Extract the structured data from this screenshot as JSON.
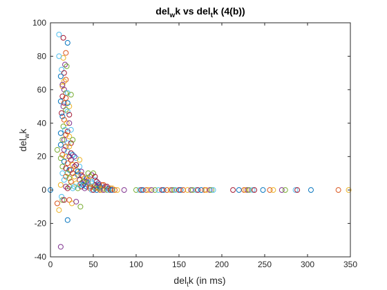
{
  "chart_data": {
    "type": "scatter",
    "title": {
      "a": "del",
      "a_sub": "w",
      "b": "k vs del",
      "b_sub": "t",
      "c": "k (4(b))"
    },
    "xlabel": {
      "a": "del",
      "a_sub": "t",
      "b": "k (in ms)"
    },
    "ylabel": {
      "a": "del",
      "a_sub": "w",
      "b": "k"
    },
    "xlim": [
      0,
      350
    ],
    "ylim": [
      -40,
      100
    ],
    "xticks": [
      "0",
      "50",
      "100",
      "150",
      "200",
      "250",
      "300",
      "350"
    ],
    "yticks": [
      "-40",
      "-20",
      "0",
      "20",
      "40",
      "60",
      "80",
      "100"
    ],
    "grid": false,
    "legend": "none",
    "palette": [
      "#0072BD",
      "#D95319",
      "#EDB120",
      "#7E2F8E",
      "#77AC30",
      "#4DBEEE",
      "#A2142F"
    ],
    "marker": "open-circle",
    "points": [
      [
        0,
        0
      ],
      [
        8,
        -8
      ],
      [
        10,
        -12
      ],
      [
        12,
        -34
      ],
      [
        14,
        -6
      ],
      [
        13,
        -4
      ],
      [
        16,
        -6
      ],
      [
        20,
        -18
      ],
      [
        22,
        -6
      ],
      [
        25,
        -8
      ],
      [
        30,
        -7
      ],
      [
        35,
        -10
      ],
      [
        10,
        93
      ],
      [
        15,
        91
      ],
      [
        20,
        88
      ],
      [
        18,
        82
      ],
      [
        15,
        79
      ],
      [
        17,
        75
      ],
      [
        19,
        74
      ],
      [
        13,
        72
      ],
      [
        16,
        70
      ],
      [
        12,
        68
      ],
      [
        18,
        66
      ],
      [
        14,
        62
      ],
      [
        16,
        60
      ],
      [
        18,
        58
      ],
      [
        20,
        58
      ],
      [
        14,
        56
      ],
      [
        12,
        53
      ],
      [
        16,
        52
      ],
      [
        22,
        50
      ],
      [
        15,
        50
      ],
      [
        18,
        48
      ],
      [
        20,
        47
      ],
      [
        13,
        46
      ],
      [
        14,
        44
      ],
      [
        16,
        42
      ],
      [
        19,
        40
      ],
      [
        22,
        40
      ],
      [
        15,
        38
      ],
      [
        17,
        36
      ],
      [
        20,
        35
      ],
      [
        12,
        34
      ],
      [
        18,
        33
      ],
      [
        22,
        32
      ],
      [
        16,
        30
      ],
      [
        14,
        30
      ],
      [
        20,
        28
      ],
      [
        24,
        28
      ],
      [
        12,
        27
      ],
      [
        18,
        26
      ],
      [
        22,
        26
      ],
      [
        16,
        24
      ],
      [
        8,
        24
      ],
      [
        20,
        23
      ],
      [
        24,
        22
      ],
      [
        26,
        21
      ],
      [
        14,
        21
      ],
      [
        18,
        20
      ],
      [
        22,
        20
      ],
      [
        12,
        19
      ],
      [
        30,
        19
      ],
      [
        24,
        18
      ],
      [
        16,
        17
      ],
      [
        20,
        16
      ],
      [
        26,
        15
      ],
      [
        28,
        14
      ],
      [
        14,
        14
      ],
      [
        34,
        14
      ],
      [
        18,
        13
      ],
      [
        22,
        12
      ],
      [
        24,
        12
      ],
      [
        30,
        12
      ],
      [
        36,
        11
      ],
      [
        20,
        10
      ],
      [
        14,
        10
      ],
      [
        26,
        10
      ],
      [
        32,
        9
      ],
      [
        18,
        8
      ],
      [
        28,
        8
      ],
      [
        38,
        8
      ],
      [
        22,
        7
      ],
      [
        16,
        6
      ],
      [
        34,
        6
      ],
      [
        42,
        7
      ],
      [
        44,
        6
      ],
      [
        46,
        8
      ],
      [
        48,
        9
      ],
      [
        50,
        10
      ],
      [
        52,
        6
      ],
      [
        54,
        5
      ],
      [
        40,
        5
      ],
      [
        24,
        5
      ],
      [
        30,
        4
      ],
      [
        36,
        4
      ],
      [
        44,
        4
      ],
      [
        48,
        4
      ],
      [
        52,
        3
      ],
      [
        56,
        3
      ],
      [
        60,
        3
      ],
      [
        12,
        3
      ],
      [
        18,
        2
      ],
      [
        22,
        2
      ],
      [
        28,
        2
      ],
      [
        36,
        2
      ],
      [
        42,
        2
      ],
      [
        46,
        2
      ],
      [
        50,
        2
      ],
      [
        54,
        2
      ],
      [
        58,
        1
      ],
      [
        62,
        1
      ],
      [
        66,
        2
      ],
      [
        68,
        1
      ],
      [
        70,
        1
      ],
      [
        72,
        1
      ],
      [
        40,
        1
      ],
      [
        32,
        1
      ],
      [
        26,
        1
      ],
      [
        20,
        1
      ],
      [
        38,
        3
      ],
      [
        46,
        1
      ],
      [
        56,
        1
      ],
      [
        64,
        2
      ],
      [
        52,
        1
      ],
      [
        48,
        0
      ],
      [
        50,
        0
      ],
      [
        54,
        0
      ],
      [
        58,
        0
      ],
      [
        60,
        0
      ],
      [
        62,
        0
      ],
      [
        66,
        0
      ],
      [
        68,
        0
      ],
      [
        70,
        0
      ],
      [
        72,
        0
      ],
      [
        75,
        0
      ],
      [
        78,
        0
      ],
      [
        86,
        0
      ],
      [
        100,
        0
      ],
      [
        104,
        0
      ],
      [
        106,
        0
      ],
      [
        108,
        0
      ],
      [
        112,
        0
      ],
      [
        115,
        0
      ],
      [
        118,
        0
      ],
      [
        122,
        0
      ],
      [
        126,
        0
      ],
      [
        130,
        0
      ],
      [
        132,
        0
      ],
      [
        136,
        0
      ],
      [
        140,
        0
      ],
      [
        142,
        0
      ],
      [
        144,
        0
      ],
      [
        146,
        0
      ],
      [
        150,
        0
      ],
      [
        152,
        0
      ],
      [
        155,
        0
      ],
      [
        160,
        0
      ],
      [
        164,
        0
      ],
      [
        166,
        0
      ],
      [
        170,
        0
      ],
      [
        172,
        0
      ],
      [
        176,
        0
      ],
      [
        180,
        0
      ],
      [
        182,
        0
      ],
      [
        186,
        0
      ],
      [
        188,
        0
      ],
      [
        190,
        0
      ],
      [
        213,
        0
      ],
      [
        220,
        0
      ],
      [
        226,
        0
      ],
      [
        228,
        0
      ],
      [
        230,
        0
      ],
      [
        232,
        0
      ],
      [
        236,
        0
      ],
      [
        238,
        0
      ],
      [
        248,
        0
      ],
      [
        256,
        0
      ],
      [
        260,
        0
      ],
      [
        270,
        0
      ],
      [
        274,
        0
      ],
      [
        286,
        0
      ],
      [
        288,
        0
      ],
      [
        304,
        0
      ],
      [
        336,
        0
      ],
      [
        348,
        0
      ],
      [
        56,
        4
      ],
      [
        44,
        10
      ],
      [
        48,
        5
      ],
      [
        52,
        8
      ],
      [
        58,
        2
      ],
      [
        62,
        3
      ],
      [
        34,
        18
      ],
      [
        28,
        20
      ],
      [
        26,
        30
      ],
      [
        24,
        36
      ],
      [
        22,
        45
      ],
      [
        20,
        52
      ],
      [
        18,
        55
      ],
      [
        16,
        65
      ],
      [
        14,
        63
      ],
      [
        24,
        57
      ],
      [
        10,
        80
      ],
      [
        30,
        15
      ],
      [
        32,
        11
      ],
      [
        36,
        9
      ],
      [
        40,
        7
      ],
      [
        42,
        5
      ],
      [
        38,
        5
      ],
      [
        34,
        3
      ]
    ]
  }
}
